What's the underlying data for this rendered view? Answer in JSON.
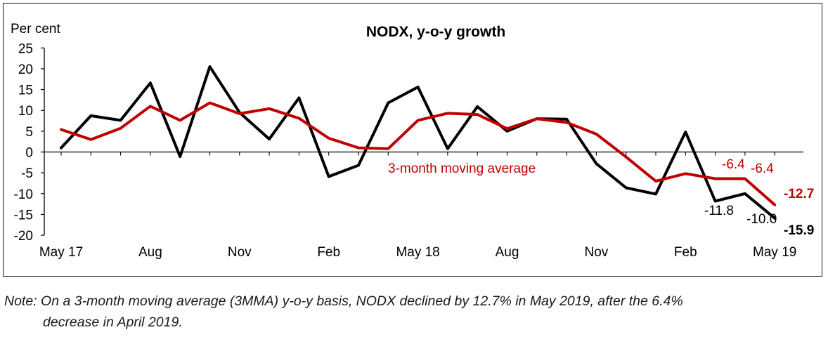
{
  "chart_data": {
    "type": "line",
    "title": "NODX, y-o-y growth",
    "ylabel": "Per cent",
    "xlabel": "",
    "ylim": [
      -20,
      25
    ],
    "yticks": [
      "25",
      "20",
      "15",
      "10",
      "5",
      "0",
      "-5",
      "-10",
      "-15",
      "-20"
    ],
    "x_tick_labels": [
      {
        "index": 0,
        "label": "May 17"
      },
      {
        "index": 3,
        "label": "Aug"
      },
      {
        "index": 6,
        "label": "Nov"
      },
      {
        "index": 9,
        "label": "Feb"
      },
      {
        "index": 12,
        "label": "May 18"
      },
      {
        "index": 15,
        "label": "Aug"
      },
      {
        "index": 18,
        "label": "Nov"
      },
      {
        "index": 21,
        "label": "Feb"
      },
      {
        "index": 24,
        "label": "May 19"
      }
    ],
    "series": [
      {
        "key": "nodx",
        "color": "#000000",
        "values": [
          1.0,
          8.7,
          7.6,
          16.6,
          -1.1,
          20.5,
          9.5,
          3.1,
          13.0,
          -5.9,
          -3.2,
          11.8,
          15.6,
          0.8,
          10.9,
          5.0,
          8.0,
          7.9,
          -2.8,
          -8.6,
          -10.1,
          4.8,
          -11.8,
          -10.0,
          -15.9
        ]
      },
      {
        "key": "mma",
        "name": "3-month moving average",
        "color": "#c00000",
        "values": [
          5.4,
          3.0,
          5.7,
          11.0,
          7.6,
          11.8,
          9.2,
          10.4,
          8.1,
          3.3,
          1.0,
          0.8,
          7.6,
          9.3,
          9.0,
          5.6,
          8.0,
          7.1,
          4.3,
          -1.2,
          -7.0,
          -5.2,
          -6.4,
          -6.4,
          -12.7
        ]
      }
    ],
    "annotations": [
      {
        "series": "mma",
        "index": 22,
        "text": "-6.4",
        "bold": false
      },
      {
        "series": "mma",
        "index": 23,
        "text": "-6.4",
        "bold": false
      },
      {
        "series": "mma",
        "index": 24,
        "text": "-12.7",
        "bold": true
      },
      {
        "series": "nodx",
        "index": 22,
        "text": "-11.8",
        "bold": false
      },
      {
        "series": "nodx",
        "index": 23,
        "text": "-10.0",
        "bold": false
      },
      {
        "series": "nodx",
        "index": 24,
        "text": "-15.9",
        "bold": true
      }
    ]
  },
  "note": {
    "line1": "Note: On a 3-month moving average (3MMA) y-o-y basis, NODX declined by 12.7% in May 2019, after the 6.4%",
    "line2": "decrease in April 2019."
  }
}
